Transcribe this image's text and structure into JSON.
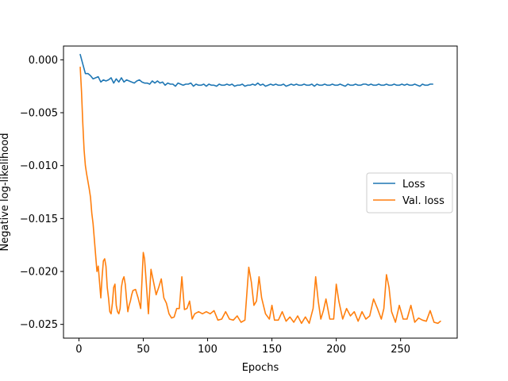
{
  "chart_data": {
    "type": "line",
    "xlabel": "Epochs",
    "ylabel": "Negative log-likelihood",
    "xlim": [
      -12,
      294
    ],
    "ylim": [
      -0.0263,
      0.0013
    ],
    "x_ticks": [
      0,
      50,
      100,
      150,
      200,
      250
    ],
    "x_tick_labels": [
      "0",
      "50",
      "100",
      "150",
      "200",
      "250"
    ],
    "y_ticks": [
      0.0,
      -0.005,
      -0.01,
      -0.015,
      -0.02,
      -0.025
    ],
    "y_tick_labels": [
      "0.000",
      "−0.005",
      "−0.010",
      "−0.015",
      "−0.020",
      "−0.025"
    ],
    "legend_position": "center-right",
    "grid": false,
    "series": [
      {
        "name": "Loss",
        "color": "#1f77b4",
        "x_start": 1,
        "x_step": 2,
        "values": [
          0.0005,
          -0.0004,
          -0.0013,
          -0.0013,
          -0.0015,
          -0.0018,
          -0.0017,
          -0.0016,
          -0.0021,
          -0.0019,
          -0.002,
          -0.0019,
          -0.0017,
          -0.0022,
          -0.0018,
          -0.0021,
          -0.0017,
          -0.0021,
          -0.0019,
          -0.002,
          -0.0021,
          -0.0022,
          -0.002,
          -0.0019,
          -0.0021,
          -0.0022,
          -0.0022,
          -0.0023,
          -0.002,
          -0.0022,
          -0.002,
          -0.0022,
          -0.0021,
          -0.0024,
          -0.0022,
          -0.0023,
          -0.0023,
          -0.0025,
          -0.0022,
          -0.0023,
          -0.0024,
          -0.0023,
          -0.0023,
          -0.0022,
          -0.0025,
          -0.0023,
          -0.0024,
          -0.0024,
          -0.0023,
          -0.0025,
          -0.0023,
          -0.0024,
          -0.0024,
          -0.0025,
          -0.0023,
          -0.0024,
          -0.0024,
          -0.0023,
          -0.0024,
          -0.0023,
          -0.0025,
          -0.0024,
          -0.0024,
          -0.0023,
          -0.0025,
          -0.0024,
          -0.0024,
          -0.0023,
          -0.0024,
          -0.0022,
          -0.0024,
          -0.0023,
          -0.0025,
          -0.0024,
          -0.0023,
          -0.0024,
          -0.0023,
          -0.0024,
          -0.0024,
          -0.0023,
          -0.0025,
          -0.0024,
          -0.0023,
          -0.0024,
          -0.0023,
          -0.0024,
          -0.0024,
          -0.0023,
          -0.0024,
          -0.0024,
          -0.0023,
          -0.0025,
          -0.0023,
          -0.0024,
          -0.0024,
          -0.0023,
          -0.0024,
          -0.0024,
          -0.0023,
          -0.0024,
          -0.0024,
          -0.0023,
          -0.0024,
          -0.0025,
          -0.0023,
          -0.0024,
          -0.0024,
          -0.0023,
          -0.0024,
          -0.0024,
          -0.0023,
          -0.0023,
          -0.0024,
          -0.0023,
          -0.0024,
          -0.0024,
          -0.0023,
          -0.0024,
          -0.0024,
          -0.0023,
          -0.0024,
          -0.0024,
          -0.0023,
          -0.0024,
          -0.0024,
          -0.0023,
          -0.0024,
          -0.0023,
          -0.0024,
          -0.0024,
          -0.0023,
          -0.0024,
          -0.0025,
          -0.0023,
          -0.0024,
          -0.0024,
          -0.0023,
          -0.0023
        ]
      },
      {
        "name": "Val. loss",
        "color": "#ff7f0e",
        "x": [
          1,
          2,
          3,
          4,
          5,
          6,
          7,
          8,
          9,
          10,
          11,
          12,
          13,
          14,
          15,
          16,
          17,
          18,
          19,
          20,
          21,
          22,
          23,
          24,
          25,
          26,
          27,
          28,
          29,
          30,
          31,
          32,
          33,
          34,
          35,
          36,
          37,
          38,
          39,
          40,
          41,
          42,
          44,
          46,
          48,
          50,
          51,
          52,
          54,
          56,
          58,
          60,
          62,
          64,
          66,
          68,
          70,
          72,
          74,
          76,
          78,
          80,
          82,
          84,
          86,
          88,
          90,
          93,
          96,
          99,
          102,
          105,
          108,
          111,
          114,
          117,
          120,
          123,
          126,
          129,
          132,
          134,
          136,
          138,
          140,
          142,
          145,
          148,
          150,
          152,
          155,
          158,
          161,
          164,
          167,
          170,
          173,
          176,
          179,
          182,
          184,
          186,
          188,
          190,
          192,
          195,
          198,
          200,
          202,
          205,
          208,
          211,
          214,
          217,
          220,
          223,
          226,
          229,
          232,
          235,
          237,
          239,
          241,
          243,
          246,
          249,
          252,
          255,
          258,
          261,
          264,
          267,
          270,
          273,
          276,
          279,
          281
        ],
        "values": [
          -0.0007,
          -0.003,
          -0.006,
          -0.0085,
          -0.01,
          -0.0108,
          -0.0115,
          -0.0122,
          -0.013,
          -0.0145,
          -0.0155,
          -0.017,
          -0.0185,
          -0.02,
          -0.0195,
          -0.021,
          -0.0225,
          -0.0205,
          -0.019,
          -0.0188,
          -0.0195,
          -0.0215,
          -0.0225,
          -0.0238,
          -0.024,
          -0.023,
          -0.0215,
          -0.0212,
          -0.0232,
          -0.0238,
          -0.024,
          -0.0235,
          -0.0215,
          -0.0208,
          -0.0205,
          -0.0212,
          -0.0226,
          -0.0238,
          -0.0232,
          -0.0228,
          -0.0222,
          -0.0218,
          -0.0217,
          -0.0225,
          -0.0235,
          -0.0182,
          -0.0188,
          -0.0205,
          -0.024,
          -0.0198,
          -0.021,
          -0.0222,
          -0.0215,
          -0.0207,
          -0.0225,
          -0.023,
          -0.024,
          -0.0244,
          -0.0243,
          -0.0235,
          -0.0235,
          -0.0205,
          -0.0236,
          -0.0235,
          -0.0228,
          -0.0245,
          -0.024,
          -0.0238,
          -0.024,
          -0.0238,
          -0.024,
          -0.0237,
          -0.0246,
          -0.0245,
          -0.0238,
          -0.0245,
          -0.0246,
          -0.0242,
          -0.0248,
          -0.0246,
          -0.0196,
          -0.021,
          -0.0232,
          -0.0228,
          -0.0205,
          -0.0225,
          -0.024,
          -0.0245,
          -0.0232,
          -0.0246,
          -0.0246,
          -0.0238,
          -0.0247,
          -0.0243,
          -0.0248,
          -0.0242,
          -0.0249,
          -0.0243,
          -0.0249,
          -0.0235,
          -0.0205,
          -0.0228,
          -0.0245,
          -0.0237,
          -0.0226,
          -0.0245,
          -0.0245,
          -0.0212,
          -0.0228,
          -0.0245,
          -0.0235,
          -0.0242,
          -0.0238,
          -0.0247,
          -0.0238,
          -0.0245,
          -0.0242,
          -0.0226,
          -0.0235,
          -0.0245,
          -0.0235,
          -0.0203,
          -0.0215,
          -0.0238,
          -0.0248,
          -0.0232,
          -0.0245,
          -0.0245,
          -0.0232,
          -0.0248,
          -0.0244,
          -0.0246,
          -0.0247,
          -0.0237,
          -0.0248,
          -0.0249,
          -0.0247
        ]
      }
    ]
  }
}
